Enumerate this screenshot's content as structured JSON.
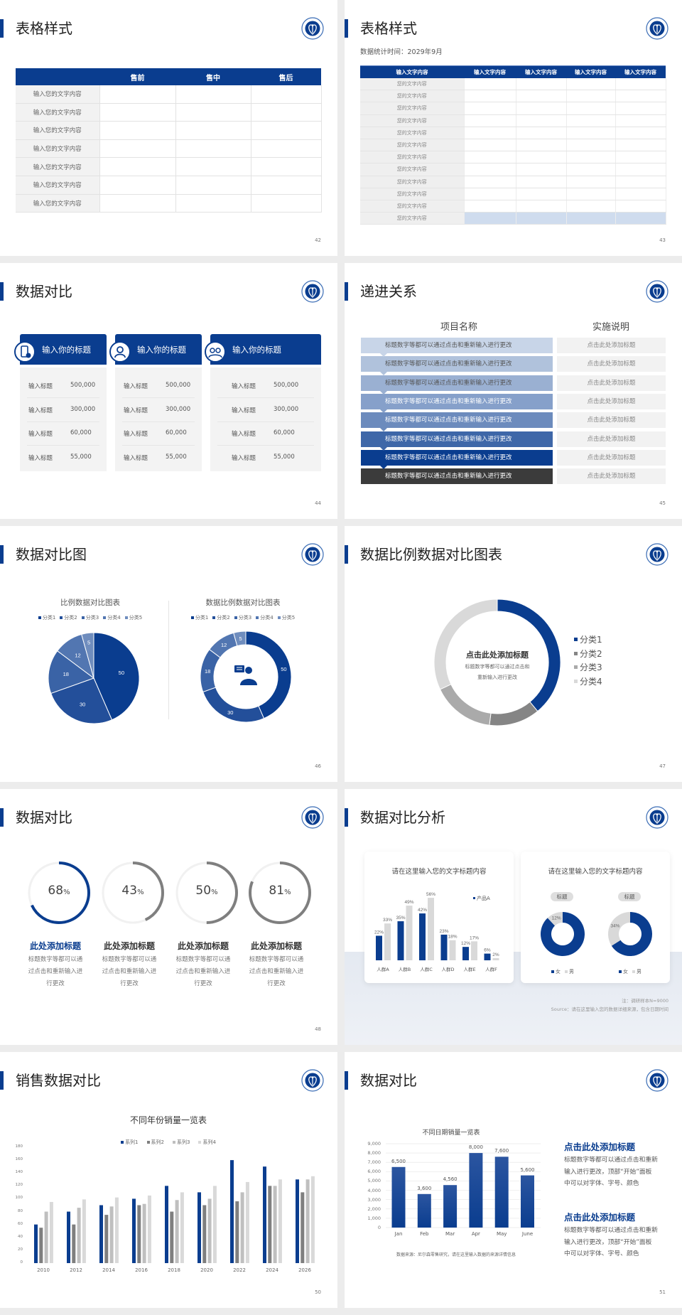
{
  "colors": {
    "brand_blue": "#0a3d8f",
    "slide_bg": "#ffffff",
    "page_bg": "#ececec",
    "grey_dark": "#7f7f7f",
    "grey_mid": "#bfbfbf",
    "grey_light": "#d9d9d9"
  },
  "logo_icon": "medical-school-emblem-icon",
  "s42": {
    "title": "表格样式",
    "page": "42",
    "table": {
      "headers": [
        "",
        "售前",
        "售中",
        "售后"
      ],
      "rows": [
        "输入您的文字内容",
        "输入您的文字内容",
        "输入您的文字内容",
        "输入您的文字内容",
        "输入您的文字内容",
        "输入您的文字内容",
        "输入您的文字内容"
      ]
    }
  },
  "s43": {
    "title": "表格样式",
    "page": "43",
    "subtitle": "数据统计时间：2029年9月",
    "table": {
      "headers": [
        "输入文字内容",
        "输入文字内容",
        "输入文字内容",
        "输入文字内容",
        "输入文字内容"
      ],
      "rows": [
        "您的文字内容",
        "您的文字内容",
        "您的文字内容",
        "您的文字内容",
        "您的文字内容",
        "您的文字内容",
        "您的文字内容",
        "您的文字内容",
        "您的文字内容",
        "您的文字内容",
        "您的文字内容",
        "您的文字内容"
      ]
    }
  },
  "s44": {
    "title": "数据对比",
    "page": "44",
    "cards": [
      {
        "title": "输入你的标题",
        "icon": "mobile-medical-icon",
        "rows": [
          {
            "label": "输入标题",
            "value": "500,000"
          },
          {
            "label": "输入标题",
            "value": "300,000"
          },
          {
            "label": "输入标题",
            "value": "60,000"
          },
          {
            "label": "输入标题",
            "value": "55,000"
          }
        ]
      },
      {
        "title": "输入你的标题",
        "icon": "doctor-icon",
        "rows": [
          {
            "label": "输入标题",
            "value": "500,000"
          },
          {
            "label": "输入标题",
            "value": "300,000"
          },
          {
            "label": "输入标题",
            "value": "60,000"
          },
          {
            "label": "输入标题",
            "value": "55,000"
          }
        ]
      },
      {
        "title": "输入你的标题",
        "icon": "team-icon",
        "rows": [
          {
            "label": "输入标题",
            "value": "500,000"
          },
          {
            "label": "输入标题",
            "value": "300,000"
          },
          {
            "label": "输入标题",
            "value": "60,000"
          },
          {
            "label": "输入标题",
            "value": "55,000"
          }
        ]
      }
    ]
  },
  "s45": {
    "title": "递进关系",
    "page": "45",
    "col1": "项目名称",
    "col2": "实施说明",
    "rows": [
      {
        "item": "标题数字等都可以通过点击和重新输入进行更改",
        "note": "点击此处添加标题",
        "color": "#c8d5e8",
        "text_color": "#555555"
      },
      {
        "item": "标题数字等都可以通过点击和重新输入进行更改",
        "note": "点击此处添加标题",
        "color": "#b0c2dc",
        "text_color": "#555555"
      },
      {
        "item": "标题数字等都可以通过点击和重新输入进行更改",
        "note": "点击此处添加标题",
        "color": "#9ab0d2",
        "text_color": "#555555"
      },
      {
        "item": "标题数字等都可以通过点击和重新输入进行更改",
        "note": "点击此处添加标题",
        "color": "#86a0ca",
        "text_color": "#ffffff"
      },
      {
        "item": "标题数字等都可以通过点击和重新输入进行更改",
        "note": "点击此处添加标题",
        "color": "#6c8bbd",
        "text_color": "#ffffff"
      },
      {
        "item": "标题数字等都可以通过点击和重新输入进行更改",
        "note": "点击此处添加标题",
        "color": "#3e67a8",
        "text_color": "#ffffff"
      },
      {
        "item": "标题数字等都可以通过点击和重新输入进行更改",
        "note": "点击此处添加标题",
        "color": "#0a3d8f",
        "text_color": "#ffffff"
      },
      {
        "item": "标题数字等都可以通过点击和重新输入进行更改",
        "note": "点击此处添加标题",
        "color": "#3b3b3b",
        "text_color": "#ffffff"
      }
    ]
  },
  "s46": {
    "title": "数据对比图",
    "page": "46",
    "center_icon": "customer-service-agent-icon"
  },
  "s47": {
    "title": "数据比例数据对比图表",
    "page": "47",
    "center_title": "点击此处添加标题",
    "center_text_lines": [
      "标题数字等都可以通过点击和",
      "重新输入进行更改"
    ]
  },
  "s48": {
    "title": "数据对比",
    "page": "48",
    "items": [
      {
        "value": 68,
        "unit": "%",
        "title": "此处添加标题",
        "color": "#0a3d8f",
        "lines": [
          "标题数字等都可以通",
          "过点击和重新输入进",
          "行更改"
        ]
      },
      {
        "value": 43,
        "unit": "%",
        "title": "此处添加标题",
        "color": "#7f7f7f",
        "lines": [
          "标题数字等都可以通",
          "过点击和重新输入进",
          "行更改"
        ]
      },
      {
        "value": 50,
        "unit": "%",
        "title": "此处添加标题",
        "color": "#7f7f7f",
        "lines": [
          "标题数字等都可以通",
          "过点击和重新输入进",
          "行更改"
        ]
      },
      {
        "value": 81,
        "unit": "%",
        "title": "此处添加标题",
        "color": "#7f7f7f",
        "lines": [
          "标题数字等都可以通",
          "过点击和重新输入进",
          "行更改"
        ]
      }
    ]
  },
  "s49": {
    "title": "数据对比分析",
    "page": "49",
    "note": "注：调研样本N=9000",
    "source": "Source：请在这里输入您的数据详细来源，包含日期时间"
  },
  "s50": {
    "title": "销售数据对比",
    "page": "50"
  },
  "s51": {
    "title": "数据对比",
    "page": "51",
    "source": "数据来源：尼尔森零售研究，请在这里输入数据的来源详情信息",
    "blocks": [
      {
        "heading": "点击此处添加标题",
        "lines": [
          "标题数字等都可以通过点击和重新",
          "输入进行更改，顶部“开始”面板",
          "中可以对字体、字号、颜色"
        ]
      },
      {
        "heading": "点击此处添加标题",
        "lines": [
          "标题数字等都可以通过点击和重新",
          "输入进行更改，顶部“开始”面板",
          "中可以对字体、字号、颜色"
        ]
      }
    ]
  },
  "chart_data": [
    {
      "id": "pie46",
      "type": "pie",
      "title": "比例数据对比图表",
      "categories": [
        "分类1",
        "分类2",
        "分类3",
        "分类4",
        "分类5"
      ],
      "values": [
        50,
        30,
        18,
        12,
        5
      ],
      "colors": [
        "#0a3d8f",
        "#234f9a",
        "#3a63a6",
        "#5276b1",
        "#6f8dbe"
      ],
      "legend": "top"
    },
    {
      "id": "donut46",
      "type": "pie",
      "title": "数据比例数据对比图表",
      "categories": [
        "分类1",
        "分类2",
        "分类3",
        "分类4",
        "分类5"
      ],
      "values": [
        50,
        30,
        18,
        12,
        5
      ],
      "colors": [
        "#0a3d8f",
        "#234f9a",
        "#3a63a6",
        "#5276b1",
        "#6f8dbe"
      ],
      "legend": "top",
      "donut": true
    },
    {
      "id": "donut47",
      "type": "pie",
      "categories": [
        "分类1",
        "分类2",
        "分类3",
        "分类4"
      ],
      "values": [
        39,
        13,
        16,
        32
      ],
      "colors": [
        "#0a3d8f",
        "#858585",
        "#aaaaaa",
        "#d9d9d9"
      ],
      "legend": "right",
      "donut": true
    },
    {
      "id": "bar49",
      "type": "bar",
      "title": "请在这里输入您的文字标题内容",
      "categories": [
        "人群A",
        "人群B",
        "人群C",
        "人群D",
        "人群E",
        "人群F"
      ],
      "series": [
        {
          "name": "产品A",
          "values": [
            22,
            35,
            42,
            23,
            12,
            6
          ],
          "color": "#0a3d8f"
        },
        {
          "values": [
            33,
            49,
            56,
            18,
            17,
            2
          ],
          "color": "#d9d9d9"
        }
      ],
      "value_suffix": "%",
      "legend": "top-right",
      "grid": false
    },
    {
      "id": "donuts49",
      "type": "pie",
      "title": "请在这里输入您的文字标题内容",
      "donut": true,
      "legend": "bottom",
      "categories": [
        "女",
        "男"
      ],
      "colors": [
        "#0a3d8f",
        "#d9d9d9"
      ],
      "charts": [
        {
          "label": "标题",
          "values": [
            88,
            12
          ],
          "shown_label": "12%"
        },
        {
          "label": "标题",
          "values": [
            66,
            34
          ],
          "shown_label": "34%"
        }
      ]
    },
    {
      "id": "bar50",
      "type": "bar",
      "title": "不同年份销量一览表",
      "categories": [
        "2010",
        "2012",
        "2014",
        "2016",
        "2018",
        "2020",
        "2022",
        "2024",
        "2026"
      ],
      "series": [
        {
          "name": "系列1",
          "values": [
            60,
            80,
            90,
            100,
            120,
            110,
            160,
            150,
            130
          ],
          "color": "#0a3d8f"
        },
        {
          "name": "系列2",
          "values": [
            55,
            60,
            75,
            90,
            80,
            90,
            96,
            120,
            110
          ],
          "color": "#7f7f7f"
        },
        {
          "name": "系列3",
          "values": [
            80,
            86,
            88,
            92,
            98,
            100,
            110,
            120,
            130
          ],
          "color": "#bfbfbf"
        },
        {
          "name": "系列4",
          "values": [
            95,
            99,
            102,
            105,
            110,
            120,
            126,
            130,
            135
          ],
          "color": "#d9d9d9"
        }
      ],
      "ylim": [
        0,
        180
      ],
      "yticks": [
        0,
        20,
        40,
        60,
        80,
        100,
        120,
        140,
        160,
        180
      ],
      "legend": "top",
      "grid": false
    },
    {
      "id": "bar51",
      "type": "bar",
      "title": "不同日期销量一览表",
      "categories": [
        "Jan",
        "Feb",
        "Mar",
        "Apr",
        "May",
        "June"
      ],
      "values": [
        6500,
        3600,
        4560,
        8000,
        7600,
        5600
      ],
      "data_labels": [
        "6,500",
        "3,600",
        "4,560",
        "8,000",
        "7,600",
        "5,600"
      ],
      "ylim": [
        0,
        9000
      ],
      "yticks": [
        "0",
        "1,000",
        "2,000",
        "3,000",
        "4,000",
        "5,000",
        "6,000",
        "7,000",
        "8,000",
        "9,000"
      ],
      "grid": true,
      "color": "#0a3d8f"
    }
  ]
}
